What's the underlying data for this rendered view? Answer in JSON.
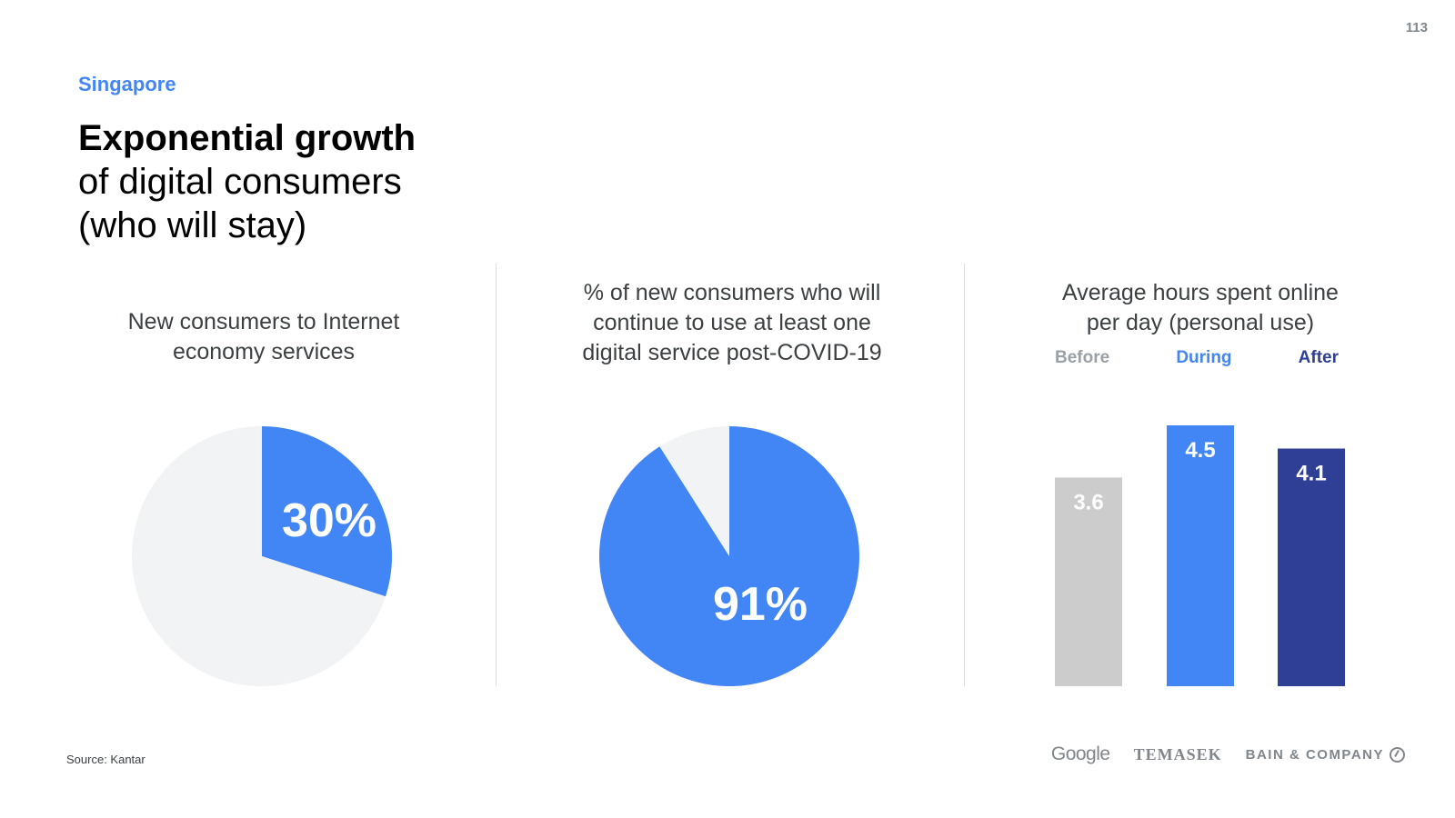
{
  "page_number": "113",
  "region": "Singapore",
  "title": {
    "bold": "Exponential growth",
    "line2": "of digital consumers",
    "line3": "(who will stay)"
  },
  "colors": {
    "blue": "#4285f4",
    "light_gray": "#f1f3f4",
    "bar_gray": "#cccccc",
    "navy": "#2f3f96"
  },
  "chart_data": [
    {
      "type": "pie",
      "title": "New consumers to Internet economy services",
      "slices": [
        {
          "label": "30%",
          "value": 30,
          "color": "#4285f4"
        },
        {
          "label": "",
          "value": 70,
          "color": "#f1f3f4"
        }
      ],
      "display_label": "30%"
    },
    {
      "type": "pie",
      "title": "% of new consumers who will continue to use at least one digital service post-COVID-19",
      "slices": [
        {
          "label": "91%",
          "value": 91,
          "color": "#4285f4"
        },
        {
          "label": "",
          "value": 9,
          "color": "#f1f3f4"
        }
      ],
      "display_label": "91%"
    },
    {
      "type": "bar",
      "title": "Average hours spent online per day (personal use)",
      "categories": [
        "Before",
        "During",
        "After"
      ],
      "values": [
        3.6,
        4.5,
        4.1
      ],
      "value_labels": [
        "3.6",
        "4.5",
        "4.1"
      ],
      "colors": [
        "#cccccc",
        "#4285f4",
        "#2f3f96"
      ],
      "legend_colors": [
        "#9aa0a6",
        "#4285f4",
        "#2f3f96"
      ],
      "ylim": [
        0,
        4.5
      ]
    }
  ],
  "panels": {
    "p1_title": [
      "New consumers to Internet",
      "economy services"
    ],
    "p2_title": [
      "% of new consumers who will",
      "continue to use at least one",
      "digital service post-COVID-19"
    ],
    "p3_title": [
      "Average hours spent online",
      "per day (personal use)"
    ]
  },
  "legend": [
    "Before",
    "During",
    "After"
  ],
  "source": "Source: Kantar",
  "logos": {
    "google": "Google",
    "temasek": "TEMASEK",
    "bain": "BAIN & COMPANY"
  }
}
